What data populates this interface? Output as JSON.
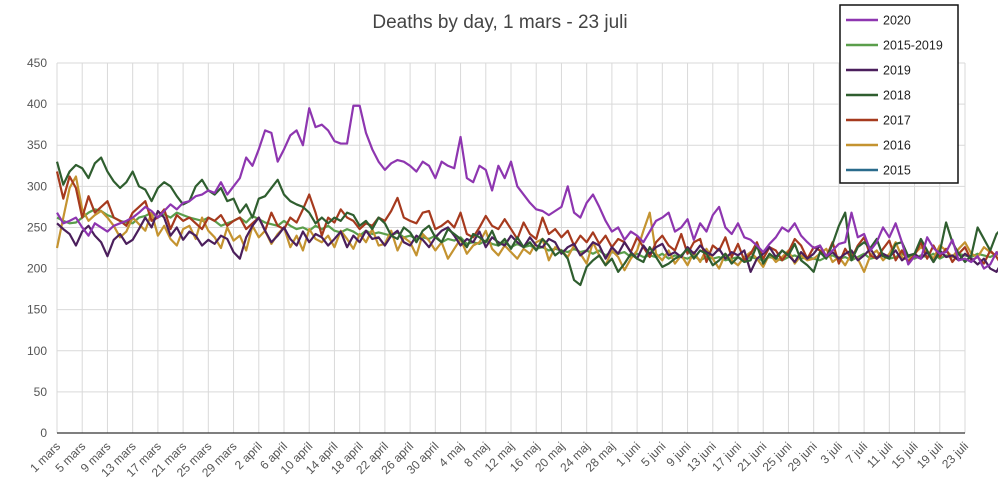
{
  "chart_data": {
    "type": "line",
    "title": "Deaths by day, 1 mars - 23 juli",
    "xlabel": "",
    "ylabel": "",
    "ylim": [
      0,
      450
    ],
    "yticks": [
      0,
      50,
      100,
      150,
      200,
      250,
      300,
      350,
      400,
      450
    ],
    "grid": true,
    "legend_position": "top-right",
    "x_ticks": [
      "1 mars",
      "5 mars",
      "9 mars",
      "13 mars",
      "17 mars",
      "21 mars",
      "25 mars",
      "29 mars",
      "2 april",
      "6 april",
      "10 april",
      "14 april",
      "18 april",
      "22 april",
      "26 april",
      "30 april",
      "4 maj",
      "8 maj",
      "12 maj",
      "16 maj",
      "20 maj",
      "24 maj",
      "28 maj",
      "1 juni",
      "5 juni",
      "9 juni",
      "13 juni",
      "17 juni",
      "21 juni",
      "25 juni",
      "29 juni",
      "3 juli",
      "7 juli",
      "11 juli",
      "15 juli",
      "19 juli",
      "23 juli"
    ],
    "series": [
      {
        "name": "2020",
        "color": "#8e36b0",
        "values": [
          268,
          255,
          258,
          262,
          250,
          240,
          255,
          250,
          245,
          252,
          255,
          258,
          262,
          268,
          275,
          270,
          262,
          270,
          278,
          272,
          280,
          282,
          288,
          290,
          295,
          292,
          305,
          290,
          300,
          310,
          335,
          325,
          345,
          368,
          365,
          330,
          345,
          362,
          368,
          350,
          395,
          372,
          375,
          368,
          355,
          352,
          352,
          398,
          398,
          365,
          345,
          330,
          320,
          328,
          332,
          330,
          325,
          318,
          330,
          325,
          310,
          330,
          325,
          322,
          360,
          310,
          305,
          325,
          320,
          295,
          325,
          310,
          330,
          300,
          290,
          280,
          272,
          270,
          265,
          270,
          275,
          300,
          268,
          262,
          280,
          290,
          275,
          258,
          245,
          250,
          235,
          245,
          240,
          232,
          245,
          258,
          262,
          268,
          245,
          250,
          260,
          235,
          255,
          245,
          265,
          275,
          250,
          242,
          255,
          238,
          235,
          228,
          220,
          230,
          238,
          250,
          245,
          255,
          240,
          232,
          225,
          228,
          215,
          222,
          230,
          232,
          268,
          238,
          242,
          222,
          232,
          250,
          238,
          255,
          232,
          205,
          215,
          212,
          238,
          225,
          218,
          220,
          235,
          210,
          212,
          208,
          215,
          200,
          205,
          220,
          210,
          212,
          218,
          200,
          185,
          180,
          195
        ]
      },
      {
        "name": "2015-2019",
        "color": "#5a9e4b",
        "values": [
          262,
          258,
          255,
          256,
          262,
          268,
          272,
          270,
          265,
          262,
          258,
          256,
          255,
          262,
          264,
          268,
          262,
          266,
          262,
          268,
          265,
          262,
          260,
          258,
          262,
          258,
          252,
          255,
          258,
          262,
          256,
          264,
          260,
          256,
          254,
          252,
          258,
          252,
          248,
          250,
          246,
          252,
          248,
          252,
          246,
          244,
          248,
          245,
          240,
          246,
          242,
          244,
          242,
          240,
          244,
          238,
          240,
          236,
          238,
          236,
          240,
          232,
          236,
          234,
          238,
          230,
          232,
          230,
          234,
          230,
          228,
          232,
          226,
          230,
          226,
          228,
          224,
          226,
          222,
          224,
          222,
          220,
          224,
          220,
          222,
          218,
          222,
          216,
          220,
          218,
          220,
          214,
          218,
          214,
          216,
          214,
          218,
          212,
          216,
          214,
          212,
          216,
          210,
          214,
          212,
          214,
          210,
          212,
          214,
          210,
          214,
          212,
          210,
          214,
          212,
          210,
          214,
          216,
          212,
          214,
          212,
          210,
          214,
          216,
          212,
          214,
          210,
          214,
          218,
          212,
          214,
          216,
          212,
          214,
          218,
          214,
          212,
          216,
          214,
          218,
          212,
          216,
          214,
          218,
          216,
          214,
          218,
          216,
          214,
          218,
          216,
          214,
          218,
          216,
          214,
          218,
          216
        ]
      },
      {
        "name": "2019",
        "color": "#4b1f5c",
        "values": [
          255,
          248,
          242,
          228,
          245,
          252,
          240,
          232,
          215,
          235,
          242,
          230,
          235,
          248,
          262,
          250,
          270,
          262,
          240,
          250,
          235,
          245,
          240,
          228,
          235,
          230,
          240,
          236,
          220,
          212,
          238,
          252,
          262,
          246,
          232,
          240,
          250,
          236,
          228,
          245,
          232,
          242,
          238,
          228,
          236,
          245,
          226,
          240,
          232,
          246,
          236,
          238,
          228,
          240,
          246,
          232,
          228,
          240,
          235,
          226,
          238,
          246,
          250,
          240,
          228,
          236,
          232,
          245,
          226,
          238,
          232,
          228,
          240,
          232,
          226,
          238,
          228,
          226,
          236,
          232,
          218,
          226,
          230,
          216,
          222,
          232,
          228,
          212,
          226,
          218,
          232,
          220,
          212,
          228,
          218,
          226,
          230,
          216,
          220,
          214,
          226,
          218,
          228,
          220,
          216,
          224,
          212,
          220,
          216,
          222,
          196,
          212,
          218,
          226,
          214,
          222,
          216,
          208,
          220,
          212,
          218,
          228,
          214,
          220,
          212,
          218,
          222,
          210,
          216,
          224,
          212,
          218,
          214,
          222,
          210,
          216,
          218,
          212,
          220,
          208,
          222,
          214,
          216,
          210,
          218,
          212,
          205,
          212,
          200,
          196,
          210,
          206,
          202,
          198,
          212,
          204,
          225
        ]
      },
      {
        "name": "2018",
        "color": "#2f5e2f",
        "values": [
          330,
          302,
          318,
          326,
          322,
          310,
          328,
          335,
          318,
          306,
          298,
          305,
          318,
          300,
          296,
          282,
          298,
          305,
          300,
          288,
          278,
          282,
          300,
          308,
          295,
          290,
          298,
          282,
          285,
          268,
          278,
          262,
          285,
          288,
          298,
          308,
          290,
          282,
          278,
          275,
          268,
          255,
          262,
          255,
          262,
          258,
          268,
          265,
          252,
          258,
          248,
          262,
          255,
          240,
          236,
          250,
          244,
          232,
          246,
          252,
          238,
          232,
          248,
          242,
          236,
          226,
          242,
          238,
          232,
          246,
          228,
          236,
          224,
          238,
          226,
          232,
          222,
          236,
          228,
          216,
          222,
          212,
          186,
          180,
          202,
          210,
          216,
          204,
          212,
          196,
          206,
          218,
          212,
          208,
          226,
          214,
          202,
          206,
          212,
          216,
          224,
          212,
          222,
          218,
          204,
          210,
          218,
          206,
          214,
          208,
          210,
          228,
          206,
          218,
          212,
          222,
          216,
          230,
          210,
          204,
          196,
          220,
          212,
          230,
          252,
          268,
          210,
          226,
          232,
          225,
          236,
          215,
          212,
          230,
          232,
          215,
          218,
          236,
          222,
          208,
          220,
          256,
          232,
          218,
          208,
          216,
          250,
          236,
          222,
          242,
          250,
          232,
          238,
          220,
          236,
          250,
          245
        ]
      },
      {
        "name": "2017",
        "color": "#a63a1e",
        "values": [
          318,
          285,
          312,
          298,
          262,
          288,
          268,
          275,
          282,
          262,
          258,
          252,
          268,
          275,
          282,
          258,
          262,
          272,
          248,
          265,
          258,
          262,
          255,
          248,
          262,
          258,
          265,
          252,
          258,
          262,
          248,
          255,
          262,
          246,
          268,
          252,
          248,
          262,
          256,
          272,
          290,
          268,
          240,
          262,
          256,
          272,
          262,
          258,
          248,
          255,
          252,
          262,
          258,
          270,
          286,
          262,
          258,
          255,
          268,
          270,
          248,
          252,
          258,
          250,
          268,
          242,
          238,
          250,
          264,
          252,
          248,
          260,
          248,
          236,
          256,
          242,
          236,
          262,
          242,
          248,
          238,
          246,
          228,
          240,
          232,
          244,
          230,
          240,
          226,
          236,
          232,
          220,
          238,
          226,
          214,
          232,
          240,
          228,
          222,
          242,
          218,
          232,
          236,
          208,
          228,
          222,
          238,
          214,
          230,
          210,
          218,
          232,
          212,
          226,
          222,
          210,
          220,
          236,
          228,
          212,
          226,
          222,
          214,
          232,
          206,
          224,
          212,
          228,
          238,
          216,
          212,
          224,
          234,
          210,
          222,
          208,
          216,
          232,
          212,
          228,
          214,
          224,
          208,
          218,
          226,
          210,
          214,
          206,
          222,
          214,
          202,
          218,
          210,
          196,
          208,
          198,
          190
        ]
      },
      {
        "name": "2016",
        "color": "#c49330",
        "values": [
          225,
          262,
          298,
          312,
          272,
          258,
          265,
          270,
          262,
          252,
          238,
          245,
          262,
          254,
          246,
          268,
          240,
          252,
          236,
          228,
          248,
          252,
          236,
          262,
          246,
          238,
          225,
          250,
          234,
          240,
          222,
          252,
          238,
          246,
          230,
          242,
          250,
          226,
          240,
          222,
          248,
          236,
          232,
          240,
          226,
          246,
          236,
          224,
          242,
          232,
          248,
          228,
          230,
          246,
          222,
          238,
          232,
          216,
          242,
          234,
          222,
          232,
          212,
          224,
          236,
          218,
          228,
          232,
          246,
          224,
          216,
          228,
          220,
          212,
          224,
          218,
          232,
          236,
          210,
          226,
          222,
          214,
          228,
          218,
          206,
          232,
          216,
          204,
          222,
          214,
          198,
          212,
          222,
          246,
          268,
          218,
          210,
          222,
          206,
          216,
          204,
          220,
          208,
          224,
          212,
          200,
          218,
          210,
          204,
          214,
          220,
          212,
          202,
          218,
          208,
          214,
          222,
          206,
          216,
          210,
          212,
          218,
          224,
          208,
          214,
          204,
          218,
          212,
          196,
          216,
          222,
          210,
          218,
          232,
          214,
          210,
          218,
          226,
          220,
          212,
          228,
          222,
          214,
          224,
          232,
          218,
          214,
          226,
          220,
          216,
          230,
          236,
          228,
          222,
          234,
          240,
          228
        ]
      },
      {
        "name": "2015",
        "color": "#2a6b8c",
        "values": [
          null
        ]
      }
    ]
  }
}
